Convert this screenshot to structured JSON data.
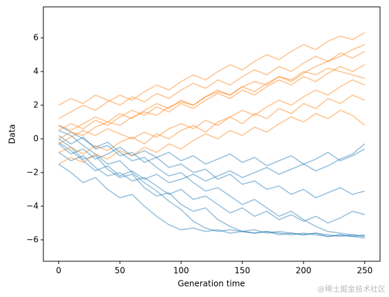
{
  "chart_data": {
    "type": "line",
    "x_label": "Generation time",
    "y_label": "Data",
    "watermark": "@稀土掘金技术社区",
    "x": [
      0,
      10,
      20,
      30,
      40,
      50,
      60,
      70,
      80,
      90,
      100,
      110,
      120,
      130,
      140,
      150,
      160,
      170,
      180,
      190,
      200,
      210,
      220,
      230,
      240,
      250
    ],
    "xlim": [
      -12.5,
      262.5
    ],
    "xticks": [
      0,
      50,
      100,
      150,
      200,
      250
    ],
    "ylim": [
      -7.27,
      7.84
    ],
    "yticks": [
      {
        "value": -6,
        "label": "−6"
      },
      {
        "value": -4,
        "label": "−4"
      },
      {
        "value": -2,
        "label": "−2"
      },
      0,
      2,
      4,
      6
    ],
    "alpha": 0.45,
    "series": [
      {
        "color": "#1f77b4",
        "values": [
          0,
          -0.5,
          -1.2,
          -1.0,
          -1.8,
          -2.3,
          -2.1,
          -2.9,
          -3.4,
          -3.2,
          -3.9,
          -4.3,
          -4.1,
          -4.8,
          -5.2,
          -5.5,
          -5.4,
          -5.6,
          -5.5,
          -5.6,
          -5.7,
          -5.6,
          -5.7,
          -5.8,
          -5.7,
          -5.8
        ]
      },
      {
        "color": "#1f77b4",
        "values": [
          0.5,
          0.2,
          -0.4,
          -0.9,
          -1.5,
          -1.3,
          -2.0,
          -2.6,
          -3.1,
          -3.7,
          -4.2,
          -4.9,
          -5.3,
          -5.5,
          -5.4,
          -5.5,
          -5.6,
          -5.5,
          -5.6,
          -5.7,
          -5.6,
          -5.7,
          -5.8,
          -5.7,
          -5.8,
          -5.9
        ]
      },
      {
        "color": "#1f77b4",
        "values": [
          -0.8,
          -1.3,
          -1.0,
          -1.7,
          -2.2,
          -2.0,
          -2.5,
          -2.3,
          -2.8,
          -3.3,
          -3.0,
          -3.6,
          -3.4,
          -3.9,
          -4.4,
          -4.1,
          -4.6,
          -4.3,
          -4.8,
          -4.5,
          -4.9,
          -4.6,
          -5.0,
          -4.7,
          -4.3,
          -4.5
        ]
      },
      {
        "color": "#1f77b4",
        "values": [
          0.2,
          -0.3,
          0.1,
          -0.6,
          -0.4,
          -1.0,
          -0.8,
          -1.4,
          -1.1,
          -1.7,
          -1.5,
          -2.0,
          -1.8,
          -2.4,
          -2.1,
          -2.7,
          -2.5,
          -3.0,
          -2.8,
          -3.3,
          -3.0,
          -3.5,
          -3.2,
          -2.9,
          -3.3,
          -3.1
        ]
      },
      {
        "color": "#1f77b4",
        "values": [
          -0.3,
          -0.9,
          -0.6,
          -1.2,
          -0.9,
          -0.5,
          -1.0,
          -0.7,
          -1.1,
          -0.8,
          -1.3,
          -1.0,
          -1.5,
          -1.2,
          -0.9,
          -1.4,
          -1.1,
          -1.6,
          -1.3,
          -1.0,
          -1.5,
          -1.2,
          -0.8,
          -1.3,
          -1.0,
          -0.6
        ]
      },
      {
        "color": "#1f77b4",
        "values": [
          -1.5,
          -2.0,
          -2.6,
          -2.3,
          -3.0,
          -3.5,
          -3.3,
          -4.0,
          -4.6,
          -5.1,
          -5.4,
          -5.3,
          -5.5,
          -5.4,
          -5.6,
          -5.5,
          -5.6,
          -5.5,
          -5.7,
          -5.6,
          -5.7,
          -5.6,
          -5.8,
          -5.7,
          -5.8,
          -5.7
        ]
      },
      {
        "color": "#1f77b4",
        "values": [
          0.8,
          0.4,
          0.0,
          -0.5,
          -0.2,
          -0.8,
          -1.3,
          -1.1,
          -1.7,
          -2.2,
          -2.0,
          -2.6,
          -3.1,
          -2.9,
          -3.4,
          -3.9,
          -3.6,
          -4.1,
          -4.6,
          -4.3,
          -4.8,
          -5.2,
          -5.5,
          -5.6,
          -5.7,
          -5.8
        ]
      },
      {
        "color": "#1f77b4",
        "values": [
          -0.2,
          -0.7,
          -1.3,
          -1.9,
          -1.6,
          -2.2,
          -1.9,
          -2.4,
          -2.1,
          -2.6,
          -2.4,
          -2.1,
          -2.5,
          -2.2,
          -1.9,
          -2.3,
          -2.0,
          -1.7,
          -2.1,
          -1.8,
          -1.5,
          -1.9,
          -1.6,
          -1.2,
          -0.9,
          -0.3
        ]
      },
      {
        "color": "#ff7f0e",
        "values": [
          0.0,
          0.4,
          0.2,
          0.7,
          1.0,
          0.8,
          1.3,
          1.6,
          1.4,
          1.9,
          2.2,
          2.0,
          2.5,
          2.8,
          2.6,
          3.1,
          3.4,
          3.2,
          3.7,
          3.5,
          4.0,
          3.8,
          4.2,
          4.0,
          3.8,
          3.6
        ]
      },
      {
        "color": "#ff7f0e",
        "values": [
          1.2,
          1.6,
          2.0,
          1.7,
          2.2,
          2.6,
          2.3,
          2.8,
          3.2,
          2.9,
          3.4,
          3.8,
          3.5,
          4.0,
          4.4,
          4.1,
          4.6,
          5.0,
          4.7,
          5.2,
          5.6,
          5.3,
          5.8,
          6.1,
          5.9,
          6.3
        ]
      },
      {
        "color": "#ff7f0e",
        "values": [
          -0.8,
          -0.5,
          -0.9,
          -0.4,
          -0.7,
          -0.2,
          0.1,
          -0.3,
          0.3,
          0.0,
          0.5,
          0.8,
          0.4,
          1.0,
          1.3,
          0.9,
          1.5,
          1.2,
          1.8,
          1.5,
          2.1,
          1.8,
          2.4,
          2.1,
          2.6,
          2.3
        ]
      },
      {
        "color": "#ff7f0e",
        "values": [
          0.5,
          0.9,
          0.6,
          1.1,
          0.8,
          1.3,
          1.7,
          1.4,
          1.9,
          1.6,
          2.1,
          1.8,
          2.3,
          2.7,
          2.4,
          2.9,
          2.6,
          3.1,
          3.5,
          3.2,
          3.7,
          3.4,
          3.9,
          4.3,
          4.0,
          4.4
        ]
      },
      {
        "color": "#ff7f0e",
        "values": [
          -1.5,
          -1.1,
          -1.4,
          -0.9,
          -1.2,
          -0.7,
          -1.0,
          -0.5,
          -0.8,
          -0.3,
          -0.6,
          -0.1,
          0.3,
          0.0,
          0.5,
          0.2,
          0.7,
          0.4,
          0.9,
          1.3,
          1.0,
          1.5,
          1.2,
          1.7,
          1.4,
          0.8
        ]
      },
      {
        "color": "#ff7f0e",
        "values": [
          2.0,
          2.4,
          2.1,
          2.6,
          2.3,
          2.0,
          2.5,
          2.2,
          2.7,
          2.4,
          2.9,
          3.3,
          3.0,
          3.5,
          3.2,
          3.7,
          4.1,
          3.8,
          4.3,
          4.0,
          4.5,
          4.9,
          4.6,
          5.1,
          4.8,
          5.2
        ]
      },
      {
        "color": "#ff7f0e",
        "values": [
          -0.3,
          0.1,
          0.5,
          0.2,
          0.6,
          0.3,
          0.0,
          0.4,
          0.1,
          0.6,
          0.9,
          0.6,
          1.1,
          0.8,
          1.3,
          1.7,
          1.4,
          1.9,
          2.3,
          2.0,
          2.5,
          2.9,
          2.6,
          3.1,
          3.5,
          3.2
        ]
      },
      {
        "color": "#ff7f0e",
        "values": [
          0.8,
          0.5,
          0.9,
          1.3,
          1.0,
          1.5,
          1.2,
          1.7,
          2.1,
          1.8,
          2.3,
          2.0,
          2.5,
          2.9,
          2.6,
          3.1,
          2.8,
          3.3,
          3.7,
          3.4,
          3.9,
          4.3,
          4.6,
          4.9,
          5.3,
          5.6
        ]
      }
    ]
  }
}
